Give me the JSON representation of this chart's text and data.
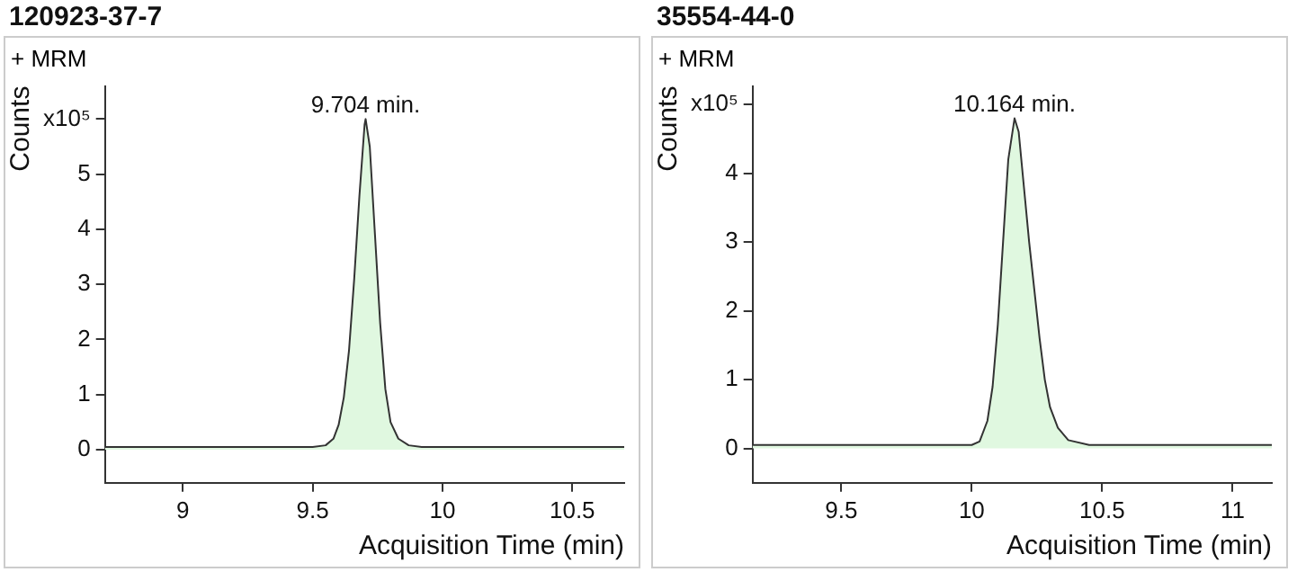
{
  "chart_data": [
    {
      "type": "area",
      "title": "120923-37-7",
      "subtitle": "+ MRM",
      "xlabel": "Acquisition Time (min)",
      "ylabel": "Counts",
      "xlim": [
        8.7,
        10.7
      ],
      "xticks": [
        9,
        9.5,
        10,
        10.5
      ],
      "ylim": [
        -0.6,
        6.6
      ],
      "yticks": [
        0,
        1,
        2,
        3,
        4,
        5,
        {
          "value": 6,
          "label": "x10⁵"
        }
      ],
      "grid": false,
      "legend": false,
      "marker": "none",
      "series": [
        {
          "color": "#e0f8e0",
          "x": [
            8.7,
            9.5,
            9.55,
            9.58,
            9.6,
            9.62,
            9.64,
            9.66,
            9.68,
            9.7,
            9.704,
            9.72,
            9.74,
            9.76,
            9.78,
            9.8,
            9.83,
            9.87,
            9.92,
            10.7
          ],
          "values": [
            0.05,
            0.05,
            0.08,
            0.2,
            0.45,
            0.95,
            1.8,
            3.1,
            4.6,
            5.9,
            6.0,
            5.5,
            3.9,
            2.3,
            1.1,
            0.5,
            0.2,
            0.08,
            0.05,
            0.05
          ]
        }
      ],
      "annotations": [
        {
          "text": "9.704 min.",
          "x": 9.704,
          "y": 6.0
        }
      ]
    },
    {
      "type": "area",
      "title": "35554-44-0",
      "subtitle": "+ MRM",
      "xlabel": "Acquisition Time (min)",
      "ylabel": "Counts",
      "xlim": [
        9.16,
        11.15
      ],
      "xticks": [
        9.5,
        10,
        10.5,
        11
      ],
      "ylim": [
        -0.5,
        5.27
      ],
      "yticks": [
        0,
        1,
        2,
        3,
        4,
        {
          "value": 5,
          "label": "x10⁵"
        }
      ],
      "grid": false,
      "legend": false,
      "marker": "none",
      "series": [
        {
          "color": "#e0f8e0",
          "x": [
            9.16,
            10.0,
            10.03,
            10.06,
            10.08,
            10.1,
            10.12,
            10.14,
            10.164,
            10.18,
            10.2,
            10.22,
            10.24,
            10.26,
            10.28,
            10.3,
            10.33,
            10.37,
            10.45,
            11.15
          ],
          "values": [
            0.05,
            0.05,
            0.1,
            0.4,
            0.9,
            1.8,
            3.0,
            4.2,
            4.8,
            4.6,
            3.8,
            3.0,
            2.3,
            1.6,
            1.0,
            0.6,
            0.3,
            0.12,
            0.05,
            0.05
          ]
        }
      ],
      "annotations": [
        {
          "text": "10.164 min.",
          "x": 10.164,
          "y": 4.8
        }
      ]
    }
  ]
}
